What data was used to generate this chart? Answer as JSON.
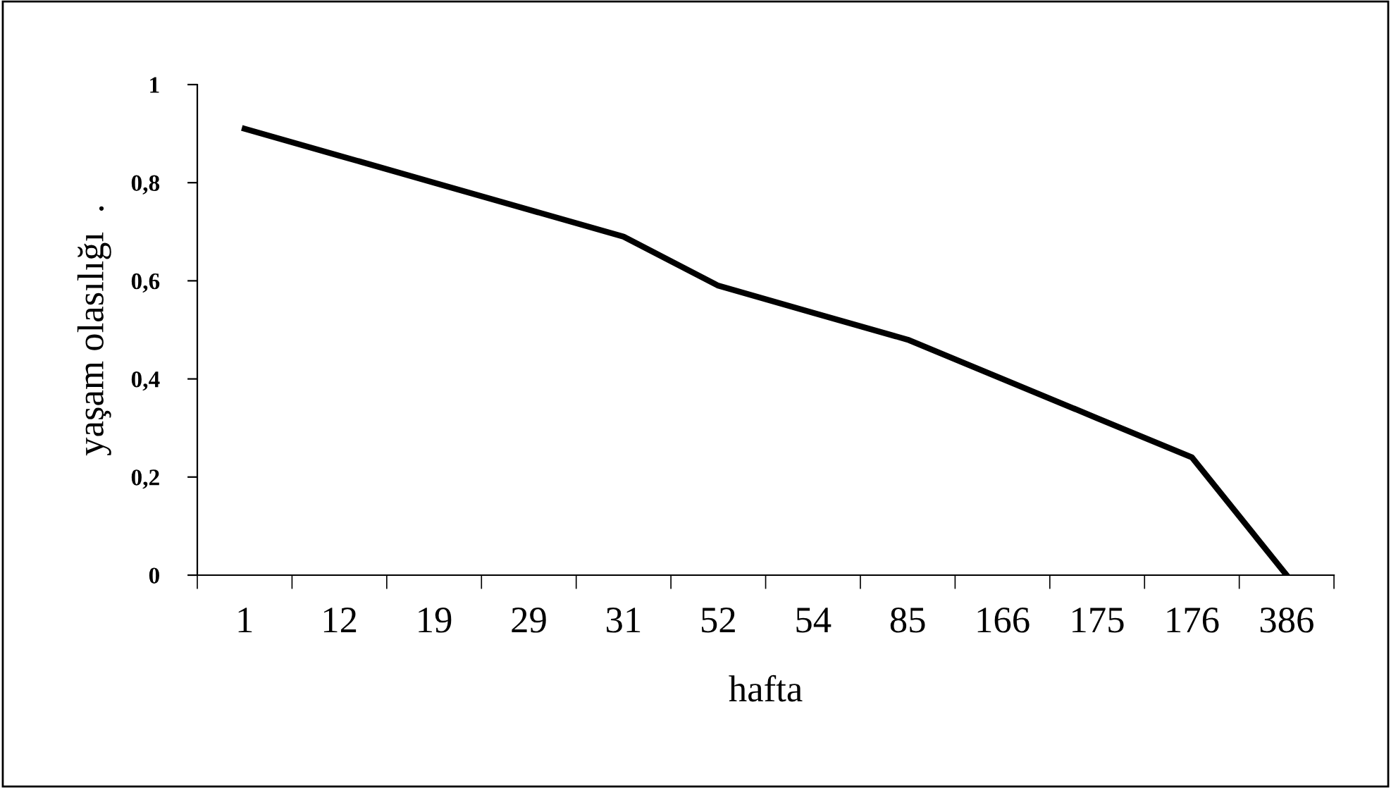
{
  "chart_data": {
    "type": "line",
    "xlabel": "hafta",
    "ylabel": "yaşam olasılığı  .",
    "categories": [
      "1",
      "12",
      "19",
      "29",
      "31",
      "52",
      "54",
      "85",
      "166",
      "175",
      "176",
      "386"
    ],
    "series": [
      {
        "color": "#000000",
        "values": [
          0.91,
          0.855,
          0.8,
          0.745,
          0.69,
          0.59,
          0.535,
          0.48,
          0.4,
          0.32,
          0.24,
          0
        ]
      }
    ],
    "ylim": [
      0,
      1
    ],
    "yticks": [
      0,
      {
        "value": 0.2,
        "label": "0,2"
      },
      {
        "value": 0.4,
        "label": "0,4"
      },
      {
        "value": 0.6,
        "label": "0,6"
      },
      {
        "value": 0.8,
        "label": "0,8"
      },
      1
    ],
    "grid": false,
    "marker": "none",
    "line_style": "solid"
  }
}
